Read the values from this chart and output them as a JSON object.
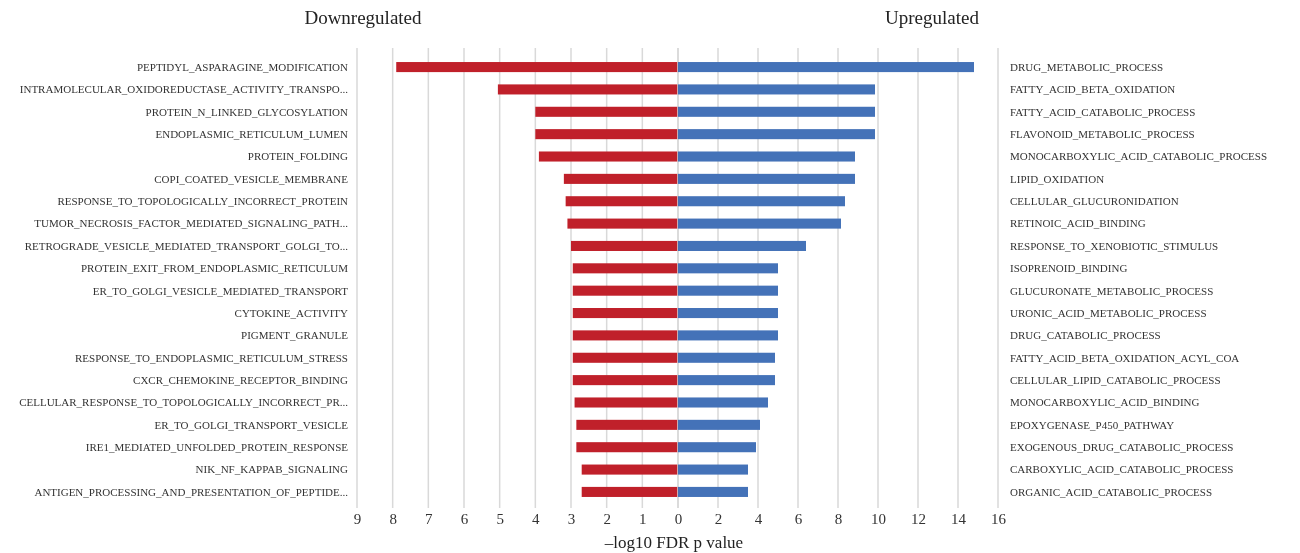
{
  "chart_data": [
    {
      "type": "bar",
      "orientation": "horizontal",
      "title": "Downregulated",
      "xlabel": "–log10 FDR p value",
      "grid": "x",
      "color": "#c0202a",
      "categories": [
        "PEPTIDYL_ASPARAGINE_MODIFICATION",
        "INTRAMOLECULAR_OXIDOREDUCTASE_ACTIVITY_TRANSPO...",
        "PROTEIN_N_LINKED_GLYCOSYLATION",
        "ENDOPLASMIC_RETICULUM_LUMEN",
        "PROTEIN_FOLDING",
        "COPI_COATED_VESICLE_MEMBRANE",
        "RESPONSE_TO_TOPOLOGICALLY_INCORRECT_PROTEIN",
        "TUMOR_NECROSIS_FACTOR_MEDIATED_SIGNALING_PATH...",
        "RETROGRADE_VESICLE_MEDIATED_TRANSPORT_GOLGI_TO...",
        "PROTEIN_EXIT_FROM_ENDOPLASMIC_RETICULUM",
        "ER_TO_GOLGI_VESICLE_MEDIATED_TRANSPORT",
        "CYTOKINE_ACTIVITY",
        "PIGMENT_GRANULE",
        "RESPONSE_TO_ENDOPLASMIC_RETICULUM_STRESS",
        "CXCR_CHEMOKINE_RECEPTOR_BINDING",
        "CELLULAR_RESPONSE_TO_TOPOLOGICALLY_INCORRECT_PR...",
        "ER_TO_GOLGI_TRANSPORT_VESICLE",
        "IRE1_MEDIATED_UNFOLDED_PROTEIN_RESPONSE",
        "NIK_NF_KAPPAB_SIGNALING",
        "ANTIGEN_PROCESSING_AND_PRESENTATION_OF_PEPTIDE..."
      ],
      "values": [
        7.9,
        5.05,
        4.0,
        4.0,
        3.9,
        3.2,
        3.15,
        3.1,
        3.0,
        2.95,
        2.95,
        2.95,
        2.95,
        2.95,
        2.95,
        2.9,
        2.85,
        2.85,
        2.7,
        2.7
      ],
      "xlim": [
        9,
        0
      ],
      "xticks": [
        9,
        8,
        7,
        6,
        5,
        4,
        3,
        2,
        1,
        0
      ]
    },
    {
      "type": "bar",
      "orientation": "horizontal",
      "title": "Upregulated",
      "grid": "x",
      "color": "#4472b8",
      "categories": [
        "DRUG_METABOLIC_PROCESS",
        "FATTY_ACID_BETA_OXIDATION",
        "FATTY_ACID_CATABOLIC_PROCESS",
        "FLAVONOID_METABOLIC_PROCESS",
        "MONOCARBOXYLIC_ACID_CATABOLIC_PROCESS",
        "LIPID_OXIDATION",
        "CELLULAR_GLUCURONIDATION",
        "RETINOIC_ACID_BINDING",
        "RESPONSE_TO_XENOBIOTIC_STIMULUS",
        "ISOPRENOID_BINDING",
        "GLUCURONATE_METABOLIC_PROCESS",
        "URONIC_ACID_METABOLIC_PROCESS",
        "DRUG_CATABOLIC_PROCESS",
        "FATTY_ACID_BETA_OXIDATION_ACYL_COA",
        "CELLULAR_LIPID_CATABOLIC_PROCESS",
        "MONOCARBOXYLIC_ACID_BINDING",
        "EPOXYGENASE_P450_PATHWAY",
        "EXOGENOUS_DRUG_CATABOLIC_PROCESS",
        "CARBOXYLIC_ACID_CATABOLIC_PROCESS",
        "ORGANIC_ACID_CATABOLIC_PROCESS"
      ],
      "values": [
        14.8,
        9.85,
        9.85,
        9.85,
        8.85,
        8.85,
        8.35,
        8.15,
        6.4,
        5.0,
        5.0,
        5.0,
        5.0,
        4.85,
        4.85,
        4.5,
        4.1,
        3.9,
        3.5,
        3.5
      ],
      "xlim": [
        0,
        16
      ],
      "xticks": [
        {
          "value": 0,
          "label": null
        },
        2,
        4,
        6,
        8,
        10,
        12,
        14,
        16
      ]
    }
  ]
}
